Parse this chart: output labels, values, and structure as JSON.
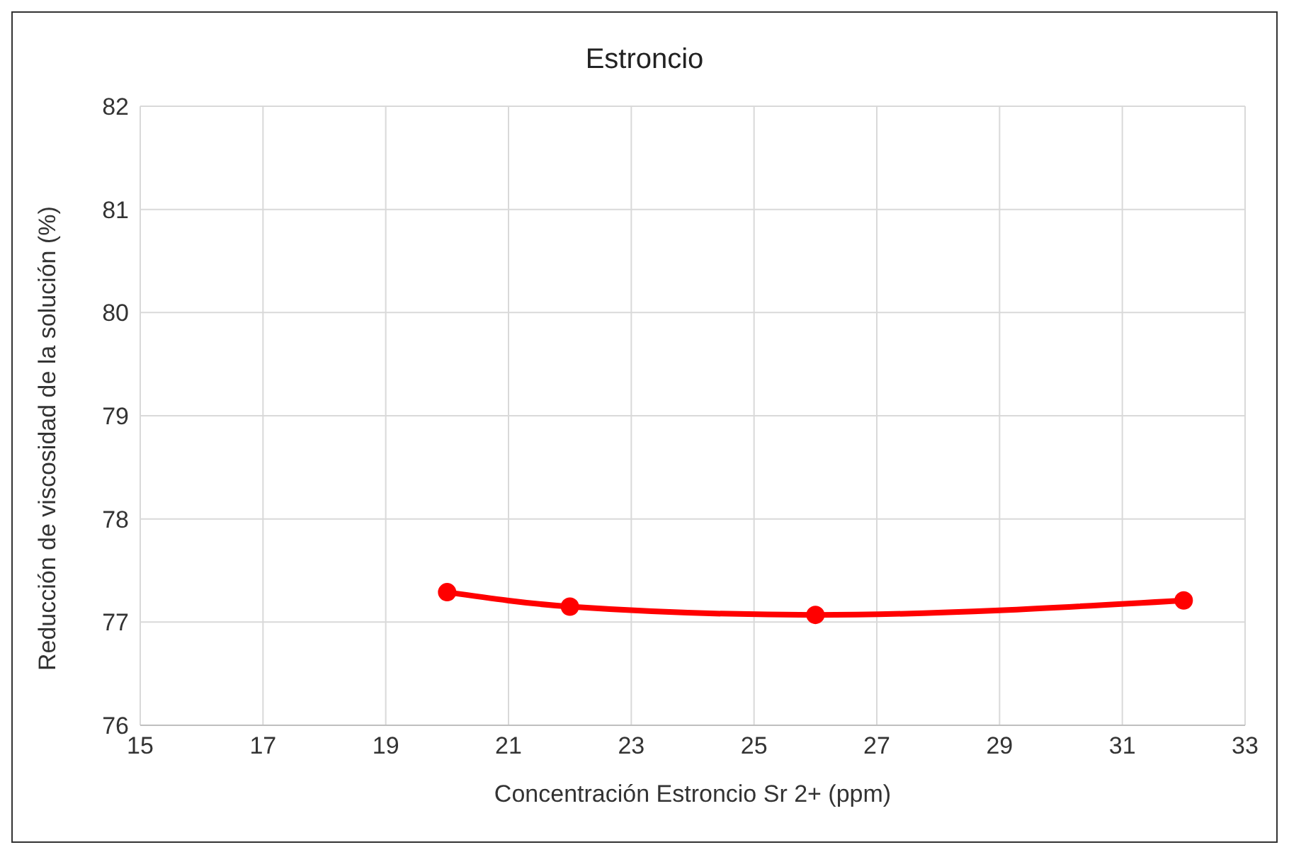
{
  "chart_data": {
    "type": "line",
    "title": "Estroncio",
    "xlabel": "Concentración Estroncio Sr 2+ (ppm)",
    "ylabel": "Reducción de viscosidad de la solución (%)",
    "x": [
      20,
      22,
      26,
      32
    ],
    "series": [
      {
        "color": "#ff0000",
        "values": [
          77.29,
          77.15,
          77.07,
          77.21
        ]
      }
    ],
    "xlim": [
      15,
      33
    ],
    "xticks": [
      15,
      17,
      19,
      21,
      23,
      25,
      27,
      29,
      31,
      33
    ],
    "ylim": [
      76,
      82
    ],
    "yticks": [
      76,
      77,
      78,
      79,
      80,
      81,
      82
    ],
    "grid": true,
    "marker": "circle",
    "line_style": "solid",
    "legend": false
  }
}
